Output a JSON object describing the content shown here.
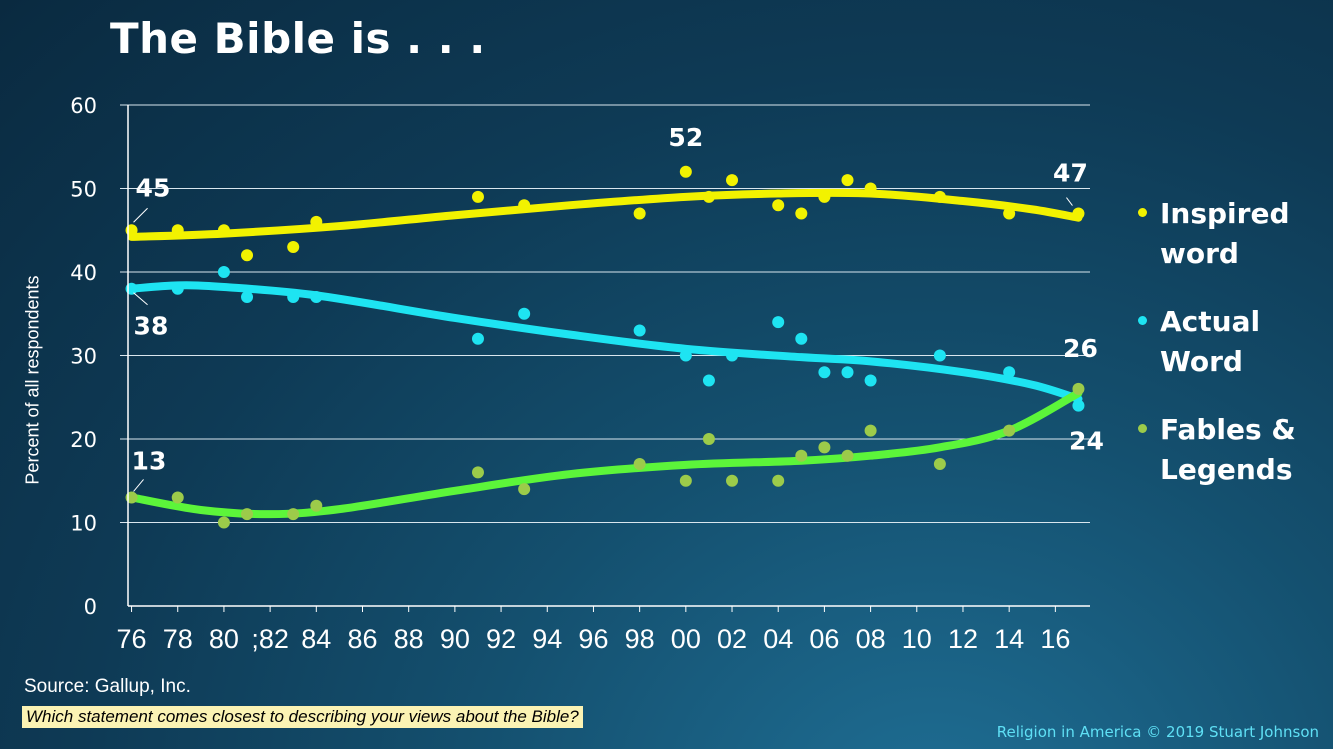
{
  "title": "The Bible is . . .",
  "source": "Source: Gallup, Inc.",
  "question": "Which statement comes closest to describing your views about the Bible?",
  "credit": "Religion in America © 2019 Stuart Johnson",
  "colors": {
    "inspired": "#f2f200",
    "actual": "#1ee4f2",
    "fables_trend": "#5cf53a",
    "fables_points": "#9ccb4a"
  },
  "chart_data": {
    "type": "scatter",
    "title": "The Bible is . . .",
    "ylabel": "Percent of all respondents",
    "xlabel": "",
    "ylim": [
      0,
      60
    ],
    "yticks": [
      0,
      10,
      20,
      30,
      40,
      50,
      60
    ],
    "xlim": [
      1975.5,
      2017.5
    ],
    "xtick_labels": [
      {
        "year": 1976,
        "label": "76"
      },
      {
        "year": 1978,
        "label": "78"
      },
      {
        "year": 1980,
        "label": "80"
      },
      {
        "year": 1982,
        "label": ";82"
      },
      {
        "year": 1984,
        "label": "84"
      },
      {
        "year": 1986,
        "label": "86"
      },
      {
        "year": 1988,
        "label": "88"
      },
      {
        "year": 1990,
        "label": "90"
      },
      {
        "year": 1992,
        "label": "92"
      },
      {
        "year": 1994,
        "label": "94"
      },
      {
        "year": 1996,
        "label": "96"
      },
      {
        "year": 1998,
        "label": "98"
      },
      {
        "year": 2000,
        "label": "00"
      },
      {
        "year": 2002,
        "label": "02"
      },
      {
        "year": 2004,
        "label": "04"
      },
      {
        "year": 2006,
        "label": "06"
      },
      {
        "year": 2008,
        "label": "08"
      },
      {
        "year": 2010,
        "label": "10"
      },
      {
        "year": 2012,
        "label": "12"
      },
      {
        "year": 2014,
        "label": "14"
      },
      {
        "year": 2016,
        "label": "16"
      }
    ],
    "grid": true,
    "legend_position": "right",
    "series": [
      {
        "key": "inspired",
        "name": "Inspired word",
        "points": [
          [
            1976,
            45
          ],
          [
            1978,
            45
          ],
          [
            1980,
            45
          ],
          [
            1981,
            42
          ],
          [
            1983,
            43
          ],
          [
            1984,
            46
          ],
          [
            1991,
            49
          ],
          [
            1993,
            48
          ],
          [
            1998,
            47
          ],
          [
            2000,
            52
          ],
          [
            2001,
            49
          ],
          [
            2002,
            51
          ],
          [
            2004,
            48
          ],
          [
            2005,
            47
          ],
          [
            2006,
            49
          ],
          [
            2007,
            51
          ],
          [
            2008,
            50
          ],
          [
            2011,
            49
          ],
          [
            2014,
            47
          ],
          [
            2017,
            47
          ]
        ],
        "trend": [
          [
            1976,
            44.2
          ],
          [
            1980,
            44.6
          ],
          [
            1985,
            45.5
          ],
          [
            1990,
            46.8
          ],
          [
            1995,
            48
          ],
          [
            2000,
            49
          ],
          [
            2004,
            49.4
          ],
          [
            2008,
            49.4
          ],
          [
            2012,
            48.5
          ],
          [
            2015,
            47.5
          ],
          [
            2017,
            46.5
          ]
        ]
      },
      {
        "key": "actual",
        "name": "Actual Word",
        "points": [
          [
            1976,
            38
          ],
          [
            1978,
            38
          ],
          [
            1980,
            40
          ],
          [
            1981,
            37
          ],
          [
            1983,
            37
          ],
          [
            1984,
            37
          ],
          [
            1991,
            32
          ],
          [
            1993,
            35
          ],
          [
            1998,
            33
          ],
          [
            2000,
            30
          ],
          [
            2001,
            27
          ],
          [
            2002,
            30
          ],
          [
            2004,
            34
          ],
          [
            2005,
            32
          ],
          [
            2006,
            28
          ],
          [
            2007,
            28
          ],
          [
            2008,
            27
          ],
          [
            2011,
            30
          ],
          [
            2014,
            28
          ],
          [
            2017,
            24
          ]
        ],
        "trend": [
          [
            1976,
            38
          ],
          [
            1978,
            38.4
          ],
          [
            1980,
            38.2
          ],
          [
            1984,
            37.2
          ],
          [
            1990,
            34.5
          ],
          [
            1995,
            32.5
          ],
          [
            2000,
            30.8
          ],
          [
            2005,
            29.8
          ],
          [
            2008,
            29.3
          ],
          [
            2012,
            28
          ],
          [
            2015,
            26.5
          ],
          [
            2017,
            24.8
          ]
        ]
      },
      {
        "key": "fables",
        "name": "Fables & Legends",
        "points": [
          [
            1976,
            13
          ],
          [
            1978,
            13
          ],
          [
            1980,
            10
          ],
          [
            1981,
            11
          ],
          [
            1983,
            11
          ],
          [
            1984,
            12
          ],
          [
            1991,
            16
          ],
          [
            1993,
            14
          ],
          [
            1998,
            17
          ],
          [
            2000,
            15
          ],
          [
            2001,
            20
          ],
          [
            2002,
            15
          ],
          [
            2004,
            15
          ],
          [
            2005,
            18
          ],
          [
            2006,
            19
          ],
          [
            2007,
            18
          ],
          [
            2008,
            21
          ],
          [
            2011,
            17
          ],
          [
            2014,
            21
          ],
          [
            2017,
            26
          ]
        ],
        "trend": [
          [
            1976,
            13
          ],
          [
            1979,
            11.5
          ],
          [
            1982,
            11
          ],
          [
            1985,
            11.6
          ],
          [
            1990,
            13.8
          ],
          [
            1995,
            15.8
          ],
          [
            2000,
            16.9
          ],
          [
            2005,
            17.4
          ],
          [
            2008,
            18
          ],
          [
            2011,
            19
          ],
          [
            2014,
            21
          ],
          [
            2017,
            25.5
          ]
        ]
      }
    ],
    "annotations": [
      {
        "series": "inspired",
        "label": "45",
        "year": 1976,
        "value": 45
      },
      {
        "series": "inspired",
        "label": "52",
        "year": 2000,
        "value": 52
      },
      {
        "series": "inspired",
        "label": "47",
        "year": 2017,
        "value": 47
      },
      {
        "series": "actual",
        "label": "38",
        "year": 1976,
        "value": 38
      },
      {
        "series": "fables",
        "label": "13",
        "year": 1976,
        "value": 13
      },
      {
        "series": "fables",
        "label": "26",
        "year": 2017,
        "value": 26
      },
      {
        "series": "actual",
        "label": "24",
        "year": 2017,
        "value": 24
      }
    ]
  }
}
